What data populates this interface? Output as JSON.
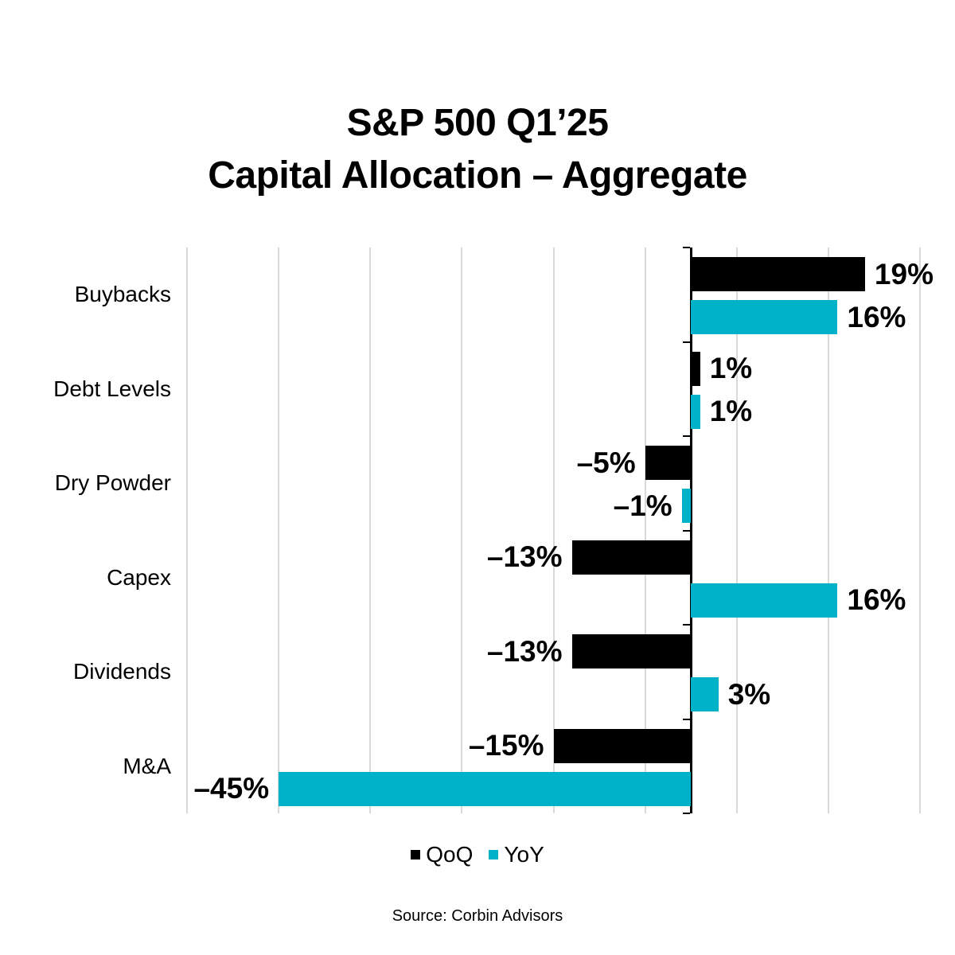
{
  "title": {
    "line1": "S&P 500 Q1’25",
    "line2": "Capital Allocation – Aggregate"
  },
  "source": "Source: Corbin Advisors",
  "legend": [
    {
      "name": "QoQ",
      "label": "QoQ",
      "color": "#000000"
    },
    {
      "name": "YoY",
      "label": "YoY",
      "color": "#00b2c9"
    }
  ],
  "colors": {
    "qoq_bar": "#000000",
    "yoy_bar": "#00b2c9",
    "gridline": "#d9d9d9",
    "axis": "#000000",
    "text": "#000000",
    "background": "#ffffff"
  },
  "chart_data": {
    "type": "bar",
    "orientation": "horizontal",
    "title": "S&P 500 Q1’25 Capital Allocation – Aggregate",
    "categories": [
      "Buybacks",
      "Debt Levels",
      "Dry Powder",
      "Capex",
      "Dividends",
      "M&A"
    ],
    "series": [
      {
        "name": "QoQ",
        "color": "#000000",
        "values": [
          19,
          1,
          -5,
          -13,
          -13,
          -15
        ],
        "labels": [
          "19%",
          "1%",
          "–5%",
          "–13%",
          "–13%",
          "–15%"
        ]
      },
      {
        "name": "YoY",
        "color": "#00b2c9",
        "values": [
          16,
          1,
          -1,
          16,
          3,
          -45
        ],
        "labels": [
          "16%",
          "1%",
          "–1%",
          "16%",
          "3%",
          "–45%"
        ]
      }
    ],
    "xlim": [
      -55,
      25
    ],
    "gridline_step": 10,
    "x_tick_labels_shown": false,
    "grid": "on",
    "legend_position": "bottom"
  }
}
